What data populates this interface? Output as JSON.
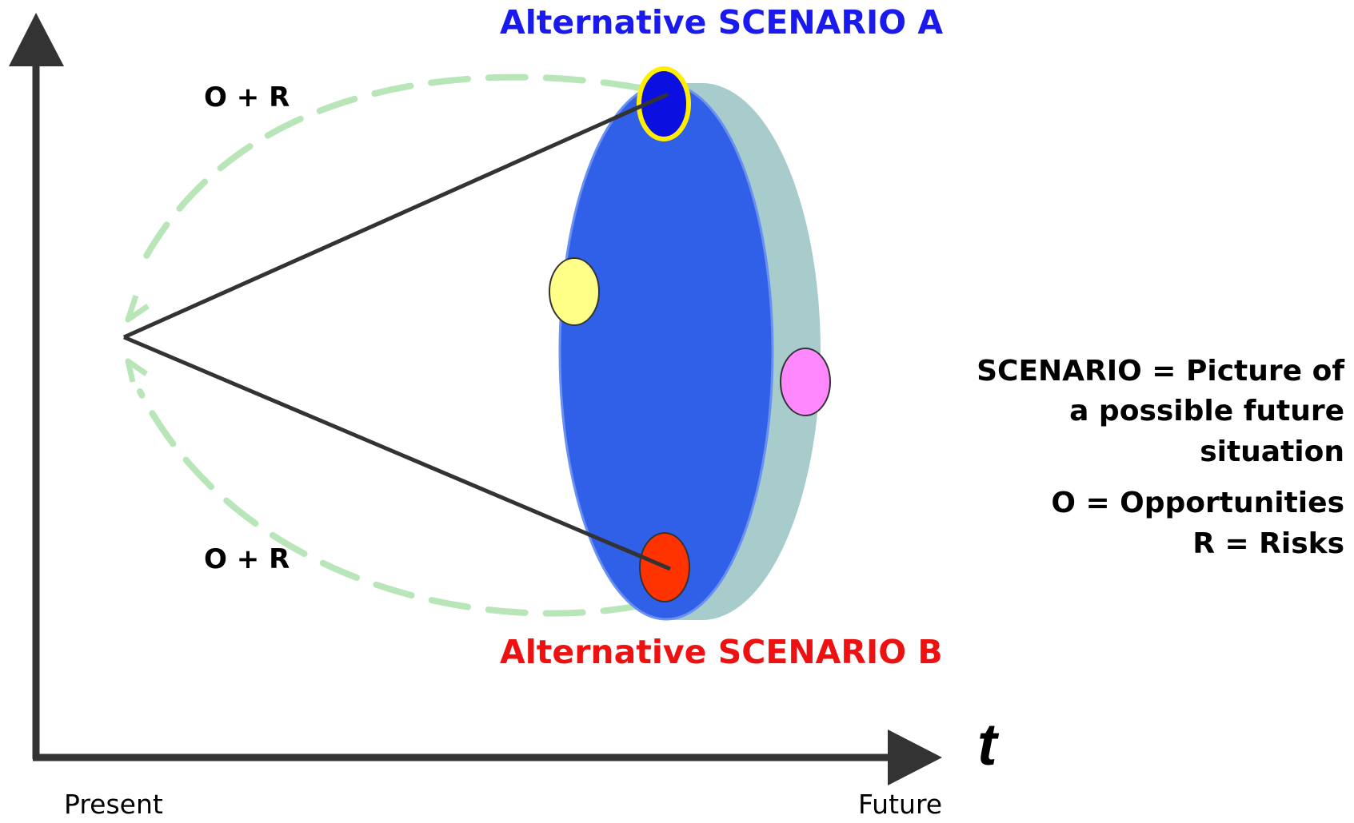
{
  "titles": {
    "scenario_a": "Alternative SCENARIO A",
    "scenario_b": "Alternative SCENARIO B",
    "scenario_a_color": "#1a1aee",
    "scenario_b_color": "#ee1111"
  },
  "labels": {
    "or_top": "O + R",
    "or_bottom": "O + R",
    "time_axis": "t",
    "present": "Present",
    "future": "Future"
  },
  "legend": {
    "definition_lines": [
      "SCENARIO = Picture of",
      "a possible future",
      "situation"
    ],
    "key_lines": [
      "O = Opportunities",
      "R = Risks"
    ]
  },
  "colors": {
    "disc_face": "#3060e8",
    "disc_edge": "#a8cccc",
    "dashed_path": "#b8e6b8",
    "axis": "#333333",
    "marker_top_fill": "#0b10e0",
    "marker_top_ring": "#ffee00",
    "marker_bottom_fill": "#ff3300",
    "marker_mid_fill": "#ffff88",
    "marker_side_fill": "#ff88ff"
  }
}
